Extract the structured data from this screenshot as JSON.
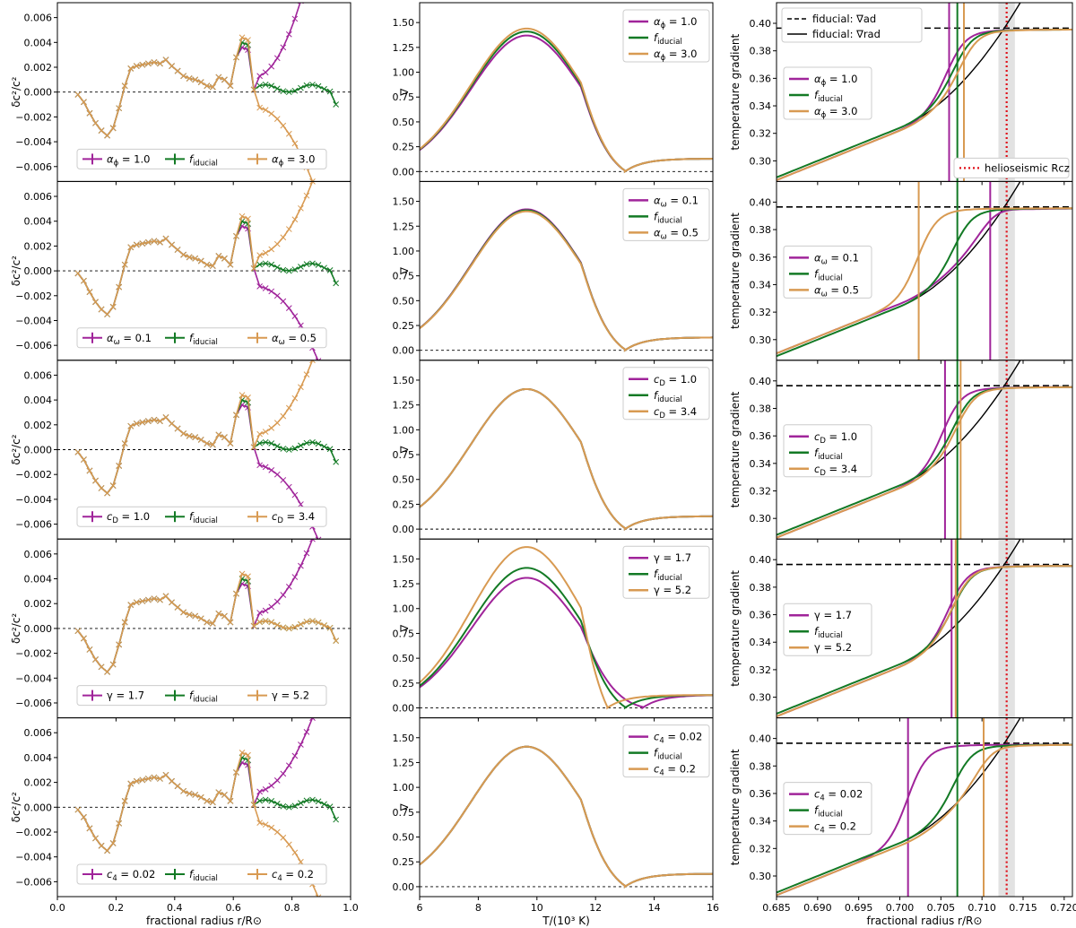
{
  "colors": {
    "purple": "#a0249a",
    "green": "#137a25",
    "orange": "#d89a52",
    "redline": "#e0101a",
    "band": "#e2e2e2"
  },
  "chart_data": {
    "type": "line",
    "layout": "5 rows x 3 columns",
    "columns": [
      {
        "id": "sound-speed",
        "xlabel": "fractional radius r/R⊙",
        "ylabel": "δc²/c²",
        "xlim": [
          0.0,
          1.0
        ],
        "ylim": [
          -0.0072,
          0.0072
        ],
        "xticks": [
          "0.0",
          "0.2",
          "0.4",
          "0.6",
          "0.8",
          "1.0"
        ],
        "yticks": [
          "-0.006",
          "-0.004",
          "-0.002",
          "0.000",
          "0.002",
          "0.004",
          "0.006"
        ],
        "reference_line": {
          "y": 0.0,
          "style": "dashed"
        },
        "legend_position": "bottom"
      },
      {
        "id": "gradient-vs-temperature",
        "xlabel": "T/(10³ K)",
        "ylabel": "∇",
        "xlim": [
          6,
          16
        ],
        "ylim": [
          -0.1,
          1.7
        ],
        "xticks": [
          "6",
          "8",
          "10",
          "12",
          "14",
          "16"
        ],
        "yticks": [
          "0.00",
          "0.25",
          "0.50",
          "0.75",
          "1.00",
          "1.25",
          "1.50"
        ],
        "reference_line": {
          "y": 0.0,
          "style": "dashed"
        },
        "legend_position": "top-right"
      },
      {
        "id": "temperature-gradient",
        "xlabel": "fractional radius r/R⊙",
        "ylabel": "temperature gradient",
        "xlim": [
          0.685,
          0.721
        ],
        "ylim": [
          0.285,
          0.415
        ],
        "xticks": [
          "0.685",
          "0.690",
          "0.695",
          "0.700",
          "0.705",
          "0.710",
          "0.715",
          "0.720"
        ],
        "yticks": [
          "0.30",
          "0.32",
          "0.34",
          "0.36",
          "0.38",
          "0.40"
        ],
        "helioseismic_Rcz": 0.713,
        "helioseismic_band": [
          0.712,
          0.714
        ],
        "nabla_ad": 0.3965,
        "legend_position": "center-left",
        "top_legend": [
          "fiducial: ∇ad",
          "fiducial: ∇rad"
        ],
        "bottom_legend": "helioseismic Rcz"
      }
    ],
    "rows": [
      {
        "param": "αϕ",
        "series": [
          {
            "name": "αϕ = 1.0",
            "color": "purple",
            "convection_boundary": 0.706,
            "temperature_gradient_peak": 1.37,
            "dc2_outer_trend": "up"
          },
          {
            "name": "fiducial",
            "color": "green",
            "convection_boundary": 0.707,
            "temperature_gradient_peak": 1.41,
            "dc2_outer_trend": "flat"
          },
          {
            "name": "αϕ = 3.0",
            "color": "orange",
            "convection_boundary": 0.7078,
            "temperature_gradient_peak": 1.44,
            "dc2_outer_trend": "down"
          }
        ]
      },
      {
        "param": "αω",
        "series": [
          {
            "name": "αω = 0.1",
            "color": "purple",
            "convection_boundary": 0.711,
            "temperature_gradient_peak": 1.42,
            "dc2_outer_trend": "down"
          },
          {
            "name": "fiducial",
            "color": "green",
            "convection_boundary": 0.707,
            "temperature_gradient_peak": 1.41,
            "dc2_outer_trend": "flat"
          },
          {
            "name": "αω = 0.5",
            "color": "orange",
            "convection_boundary": 0.7023,
            "temperature_gradient_peak": 1.4,
            "dc2_outer_trend": "up"
          }
        ]
      },
      {
        "param": "cD",
        "series": [
          {
            "name": "cD = 1.0",
            "color": "purple",
            "convection_boundary": 0.7055,
            "temperature_gradient_peak": 1.41,
            "dc2_outer_trend": "down"
          },
          {
            "name": "fiducial",
            "color": "green",
            "convection_boundary": 0.707,
            "temperature_gradient_peak": 1.41,
            "dc2_outer_trend": "flat"
          },
          {
            "name": "cD = 3.4",
            "color": "orange",
            "convection_boundary": 0.7074,
            "temperature_gradient_peak": 1.41,
            "dc2_outer_trend": "up"
          }
        ]
      },
      {
        "param": "γ",
        "series": [
          {
            "name": "γ = 1.7",
            "color": "purple",
            "convection_boundary": 0.7063,
            "temperature_gradient_peak": 1.31,
            "dc2_outer_trend": "up"
          },
          {
            "name": "fiducial",
            "color": "green",
            "convection_boundary": 0.707,
            "temperature_gradient_peak": 1.41,
            "dc2_outer_trend": "flat"
          },
          {
            "name": "γ = 5.2",
            "color": "orange",
            "convection_boundary": 0.7068,
            "temperature_gradient_peak": 1.62,
            "dc2_outer_trend": "flat"
          }
        ]
      },
      {
        "param": "c4",
        "series": [
          {
            "name": "c4 = 0.02",
            "color": "purple",
            "convection_boundary": 0.701,
            "temperature_gradient_peak": 1.41,
            "dc2_outer_trend": "up"
          },
          {
            "name": "fiducial",
            "color": "green",
            "convection_boundary": 0.707,
            "temperature_gradient_peak": 1.41,
            "dc2_outer_trend": "flat"
          },
          {
            "name": "c4 = 0.2",
            "color": "orange",
            "convection_boundary": 0.7102,
            "temperature_gradient_peak": 1.41,
            "dc2_outer_trend": "down"
          }
        ]
      }
    ],
    "common_profile": {
      "x": [
        0.07,
        0.09,
        0.11,
        0.13,
        0.15,
        0.17,
        0.19,
        0.21,
        0.23,
        0.25,
        0.27,
        0.29,
        0.31,
        0.33,
        0.35,
        0.37,
        0.39,
        0.41,
        0.43,
        0.45,
        0.47,
        0.49,
        0.51,
        0.53,
        0.55,
        0.57,
        0.59,
        0.61,
        0.63,
        0.65,
        0.67
      ],
      "y": [
        -0.0002,
        -0.0008,
        -0.0017,
        -0.0025,
        -0.0031,
        -0.0035,
        -0.0029,
        -0.0013,
        0.0005,
        0.0019,
        0.0021,
        0.0022,
        0.0023,
        0.0024,
        0.0023,
        0.0026,
        0.0021,
        0.0017,
        0.0013,
        0.0011,
        0.001,
        0.0008,
        0.0005,
        0.0004,
        0.0012,
        0.001,
        0.0005,
        0.0028,
        0.004,
        0.0038,
        0.0002
      ]
    }
  }
}
